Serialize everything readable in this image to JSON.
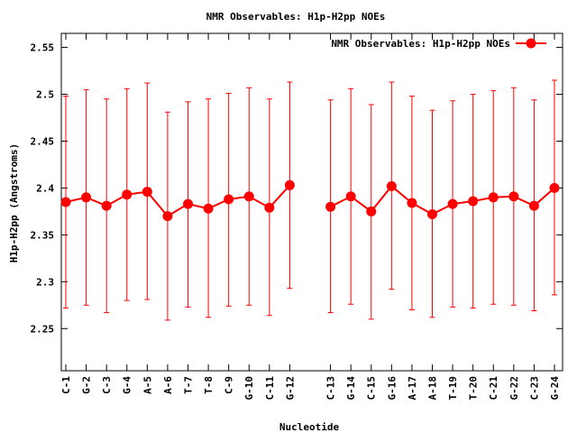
{
  "chart_data": {
    "type": "line",
    "title": "NMR Observables: H1p-H2pp NOEs",
    "xlabel": "Nucleotide",
    "ylabel": "H1p-H2pp (Angstroms)",
    "ylim": [
      2.205,
      2.565
    ],
    "yticks": [
      "2.25",
      "2.3",
      "2.35",
      "2.4",
      "2.45",
      "2.5",
      "2.55"
    ],
    "grid": false,
    "legend_position": "top-right",
    "categories": [
      "C-1",
      "G-2",
      "C-3",
      "G-4",
      "A-5",
      "A-6",
      "T-7",
      "T-8",
      "C-9",
      "G-10",
      "C-11",
      "G-12",
      "C-13",
      "G-14",
      "C-15",
      "G-16",
      "A-17",
      "A-18",
      "T-19",
      "T-20",
      "C-21",
      "G-22",
      "C-23",
      "G-24"
    ],
    "series": [
      {
        "name": "NMR Observables: H1p-H2pp NOEs",
        "color": "#ff0000",
        "segments": [
          {
            "x": [
              "C-1",
              "G-2",
              "C-3",
              "G-4",
              "A-5",
              "A-6",
              "T-7",
              "T-8",
              "C-9",
              "G-10",
              "C-11",
              "G-12"
            ],
            "values": [
              2.385,
              2.39,
              2.381,
              2.393,
              2.396,
              2.37,
              2.383,
              2.378,
              2.388,
              2.391,
              2.379,
              2.403
            ],
            "err_low": [
              2.272,
              2.275,
              2.267,
              2.28,
              2.281,
              2.259,
              2.273,
              2.262,
              2.274,
              2.275,
              2.264,
              2.293
            ],
            "err_high": [
              2.498,
              2.505,
              2.495,
              2.506,
              2.512,
              2.481,
              2.492,
              2.495,
              2.501,
              2.507,
              2.495,
              2.513
            ]
          },
          {
            "x": [
              "C-13",
              "G-14",
              "C-15",
              "G-16",
              "A-17",
              "A-18",
              "T-19",
              "T-20",
              "C-21",
              "G-22",
              "C-23",
              "G-24"
            ],
            "values": [
              2.38,
              2.391,
              2.375,
              2.402,
              2.384,
              2.372,
              2.383,
              2.386,
              2.39,
              2.391,
              2.381,
              2.4
            ],
            "err_low": [
              2.267,
              2.276,
              2.26,
              2.292,
              2.27,
              2.262,
              2.273,
              2.272,
              2.276,
              2.275,
              2.269,
              2.286
            ],
            "err_high": [
              2.494,
              2.506,
              2.489,
              2.513,
              2.498,
              2.483,
              2.493,
              2.5,
              2.504,
              2.507,
              2.494,
              2.515
            ]
          }
        ]
      }
    ]
  }
}
